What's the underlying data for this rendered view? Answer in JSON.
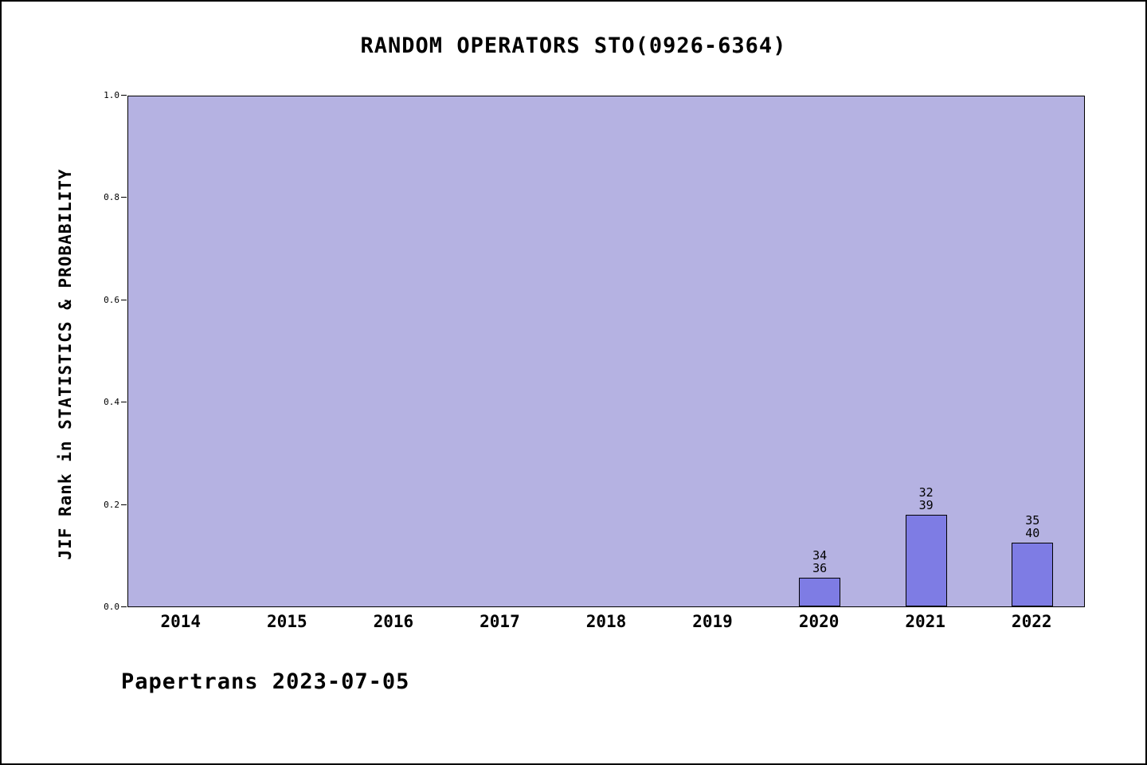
{
  "chart_data": {
    "type": "bar",
    "title": "RANDOM OPERATORS STO(0926-6364)",
    "ylabel": "JIF Rank in STATISTICS & PROBABILITY",
    "xlabel": "",
    "categories": [
      "2014",
      "2015",
      "2016",
      "2017",
      "2018",
      "2019",
      "2020",
      "2021",
      "2022"
    ],
    "ylim": [
      0.0,
      1.0
    ],
    "yticks": [
      0.0,
      0.2,
      0.4,
      0.6,
      0.8,
      1.0
    ],
    "ytick_labels": [
      "0.0",
      "0.2",
      "0.4",
      "0.6",
      "0.8",
      "1.0"
    ],
    "grid": false,
    "legend": "none",
    "series": [
      {
        "name": "JIF Rank",
        "points": [
          {
            "category": "2020",
            "rank": 34,
            "total": 36,
            "value": 0.056
          },
          {
            "category": "2021",
            "rank": 32,
            "total": 39,
            "value": 0.179
          },
          {
            "category": "2022",
            "rank": 35,
            "total": 40,
            "value": 0.125
          }
        ]
      }
    ],
    "colors": {
      "plot_background": "#b5b2e2",
      "bar_fill": "#7e7ce4",
      "bar_edge": "#000000",
      "text": "#000000"
    }
  },
  "footer": {
    "text": "Papertrans 2023-07-05"
  }
}
